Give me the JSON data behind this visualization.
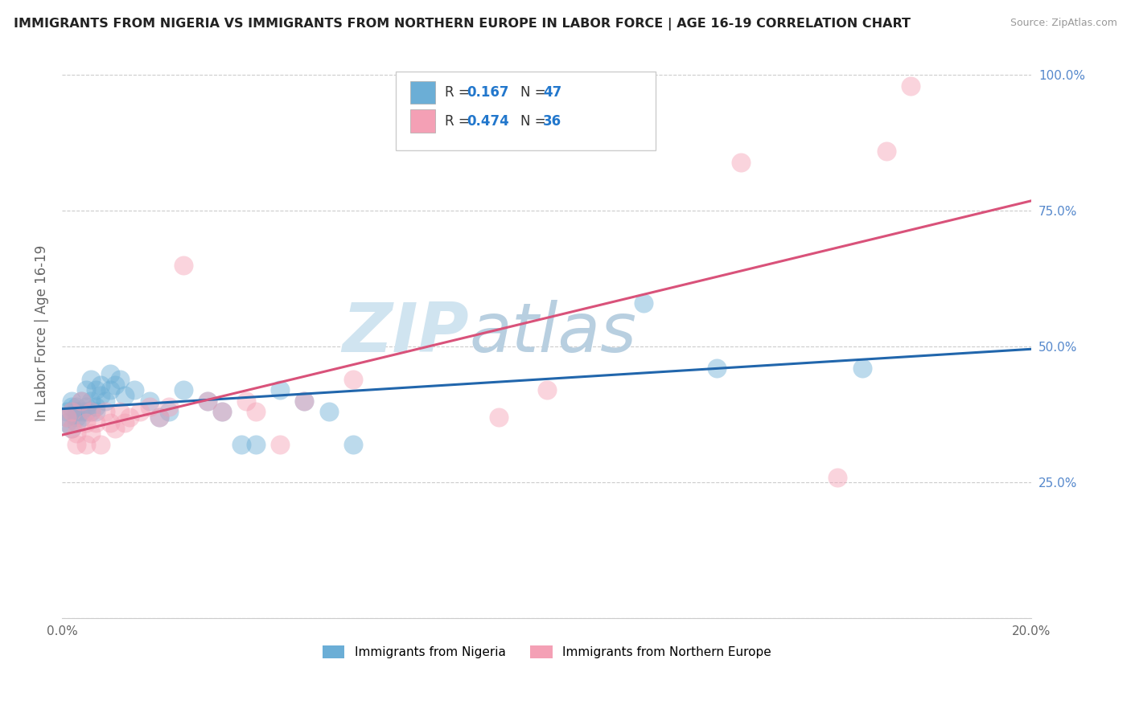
{
  "title": "IMMIGRANTS FROM NIGERIA VS IMMIGRANTS FROM NORTHERN EUROPE IN LABOR FORCE | AGE 16-19 CORRELATION CHART",
  "source": "Source: ZipAtlas.com",
  "ylabel": "In Labor Force | Age 16-19",
  "R_nigeria": 0.167,
  "N_nigeria": 47,
  "R_northern": 0.474,
  "N_northern": 36,
  "color_nigeria": "#6baed6",
  "color_northern": "#f4a0b5",
  "line_color_nigeria": "#2166ac",
  "line_color_northern": "#d9527a",
  "ytick_values": [
    0.0,
    0.25,
    0.5,
    0.75,
    1.0
  ],
  "ytick_right_labels": [
    "",
    "25.0%",
    "50.0%",
    "75.0%",
    "100.0%"
  ],
  "xtick_values": [
    0.0,
    0.02,
    0.04,
    0.06,
    0.08,
    0.1,
    0.12,
    0.14,
    0.16,
    0.18,
    0.2
  ],
  "xtick_labels": [
    "0.0%",
    "",
    "",
    "",
    "",
    "",
    "",
    "",
    "",
    "",
    "20.0%"
  ],
  "xlim": [
    0.0,
    0.2
  ],
  "ylim": [
    0.1,
    1.05
  ],
  "nigeria_x": [
    0.001,
    0.001,
    0.001,
    0.002,
    0.002,
    0.002,
    0.002,
    0.003,
    0.003,
    0.003,
    0.003,
    0.004,
    0.004,
    0.004,
    0.005,
    0.005,
    0.005,
    0.006,
    0.006,
    0.006,
    0.007,
    0.007,
    0.007,
    0.008,
    0.008,
    0.009,
    0.01,
    0.01,
    0.011,
    0.012,
    0.013,
    0.015,
    0.018,
    0.02,
    0.022,
    0.025,
    0.03,
    0.033,
    0.037,
    0.04,
    0.045,
    0.05,
    0.055,
    0.06,
    0.12,
    0.135,
    0.165
  ],
  "nigeria_y": [
    0.37,
    0.38,
    0.36,
    0.4,
    0.35,
    0.38,
    0.39,
    0.37,
    0.39,
    0.38,
    0.36,
    0.4,
    0.38,
    0.37,
    0.42,
    0.39,
    0.38,
    0.44,
    0.4,
    0.38,
    0.42,
    0.39,
    0.38,
    0.43,
    0.41,
    0.4,
    0.45,
    0.42,
    0.43,
    0.44,
    0.41,
    0.42,
    0.4,
    0.37,
    0.38,
    0.42,
    0.4,
    0.38,
    0.32,
    0.32,
    0.42,
    0.4,
    0.38,
    0.32,
    0.58,
    0.46,
    0.46
  ],
  "northern_x": [
    0.001,
    0.002,
    0.002,
    0.003,
    0.003,
    0.004,
    0.005,
    0.005,
    0.006,
    0.006,
    0.007,
    0.008,
    0.009,
    0.01,
    0.011,
    0.012,
    0.013,
    0.014,
    0.016,
    0.018,
    0.02,
    0.022,
    0.025,
    0.03,
    0.033,
    0.038,
    0.04,
    0.045,
    0.05,
    0.06,
    0.09,
    0.1,
    0.14,
    0.16,
    0.17,
    0.175
  ],
  "northern_y": [
    0.37,
    0.38,
    0.35,
    0.34,
    0.32,
    0.4,
    0.36,
    0.32,
    0.38,
    0.34,
    0.36,
    0.32,
    0.38,
    0.36,
    0.35,
    0.38,
    0.36,
    0.37,
    0.38,
    0.39,
    0.37,
    0.39,
    0.65,
    0.4,
    0.38,
    0.4,
    0.38,
    0.32,
    0.4,
    0.44,
    0.37,
    0.42,
    0.84,
    0.26,
    0.86,
    0.98
  ],
  "watermark": "ZIPatlas",
  "watermark_color": "#d0e4f0",
  "legend_nigeria_label": "Immigrants from Nigeria",
  "legend_northern_label": "Immigrants from Northern Europe"
}
